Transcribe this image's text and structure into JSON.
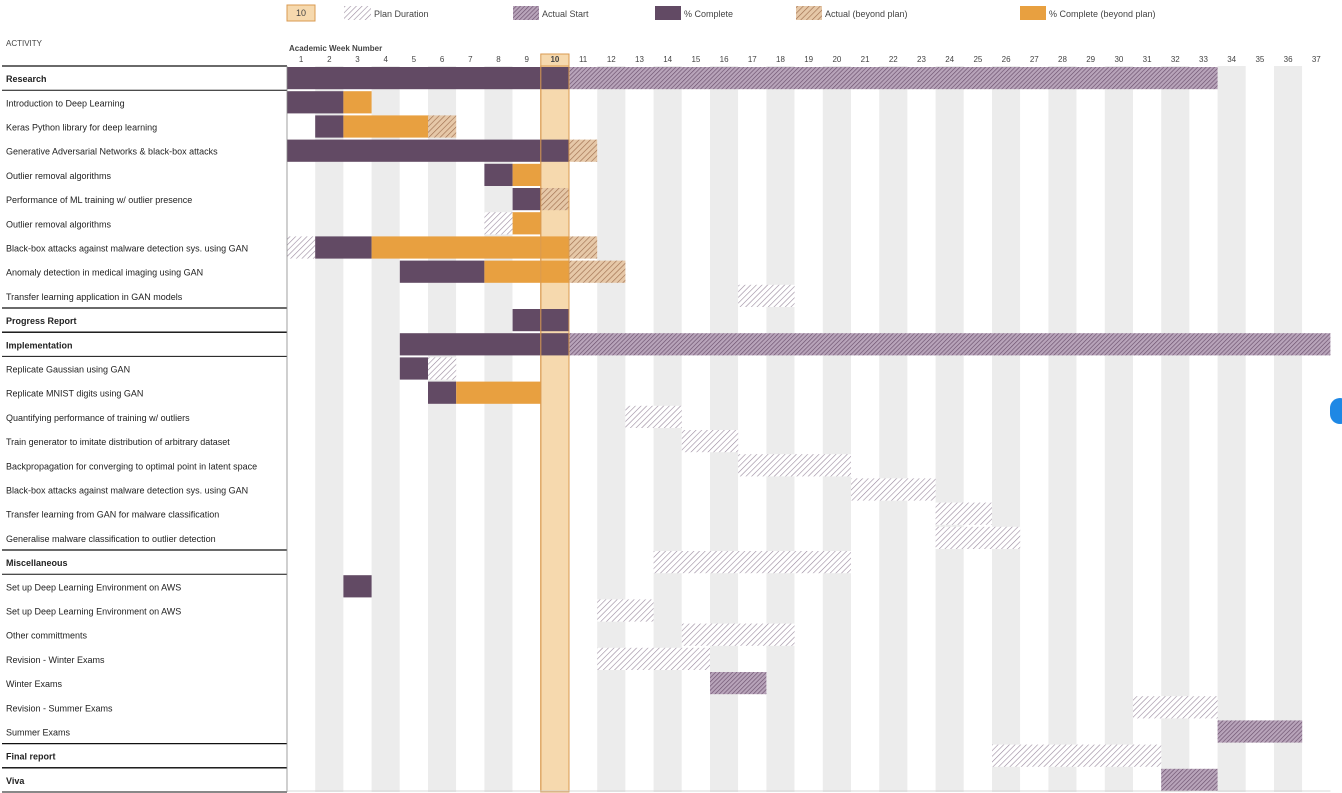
{
  "legend": {
    "current_week": "10",
    "items": [
      {
        "key": "plan",
        "label": "Plan Duration"
      },
      {
        "key": "actual_start",
        "label": "Actual Start"
      },
      {
        "key": "complete",
        "label": "% Complete"
      },
      {
        "key": "actual_beyond",
        "label": "Actual (beyond plan)"
      },
      {
        "key": "complete_beyond",
        "label": "% Complete (beyond plan)"
      }
    ]
  },
  "header": {
    "activity_label": "ACTIVITY",
    "week_axis_label": "Academic Week Number"
  },
  "colors": {
    "complete": "#624a64",
    "complete_beyond": "#e8a040",
    "plan_hatch": "#9a8a9e",
    "actual_hatch": "#7a5a7c",
    "actual_beyond_hatch": "#b08060",
    "current_week_fill": "#f6d9ae",
    "current_week_border": "#d99a50",
    "stripe_grey": "#ececec"
  },
  "chart_data": {
    "type": "gantt",
    "x_axis": "Academic Week Number",
    "weeks": [
      "1",
      "2",
      "3",
      "4",
      "5",
      "6",
      "7",
      "8",
      "9",
      "10",
      "11",
      "12",
      "13",
      "14",
      "15",
      "16",
      "17",
      "18",
      "19",
      "20",
      "21",
      "22",
      "23",
      "24",
      "25",
      "26",
      "27",
      "28",
      "29",
      "30",
      "31",
      "32",
      "33",
      "34",
      "35",
      "36",
      "37"
    ],
    "current_week": 10,
    "rows": [
      {
        "label": "Research",
        "group": true,
        "bars": [
          {
            "t": "complete",
            "s": 1,
            "e": 10
          },
          {
            "t": "actual",
            "s": 11,
            "e": 33
          }
        ]
      },
      {
        "label": "Introduction to Deep Learning",
        "bars": [
          {
            "t": "complete",
            "s": 1,
            "e": 2
          },
          {
            "t": "complete_beyond",
            "s": 3,
            "e": 3
          }
        ]
      },
      {
        "label": "Keras Python library for deep learning",
        "bars": [
          {
            "t": "complete",
            "s": 2,
            "e": 2
          },
          {
            "t": "complete_beyond",
            "s": 3,
            "e": 5
          },
          {
            "t": "actual_beyond",
            "s": 6,
            "e": 6
          }
        ]
      },
      {
        "label": "Generative Adversarial Networks & black-box attacks",
        "bars": [
          {
            "t": "complete",
            "s": 1,
            "e": 10
          },
          {
            "t": "actual_beyond",
            "s": 11,
            "e": 11
          }
        ]
      },
      {
        "label": "Outlier removal algorithms",
        "bars": [
          {
            "t": "complete",
            "s": 8,
            "e": 8
          },
          {
            "t": "complete_beyond",
            "s": 9,
            "e": 9
          }
        ]
      },
      {
        "label": "Performance of ML training w/ outlier presence",
        "bars": [
          {
            "t": "complete",
            "s": 9,
            "e": 9
          },
          {
            "t": "actual_beyond",
            "s": 10,
            "e": 10
          }
        ]
      },
      {
        "label": "Outlier removal algorithms",
        "bars": [
          {
            "t": "plan",
            "s": 8,
            "e": 8
          },
          {
            "t": "complete_beyond",
            "s": 9,
            "e": 9
          }
        ]
      },
      {
        "label": "Black-box attacks against malware detection sys. using GAN",
        "bars": [
          {
            "t": "plan",
            "s": 1,
            "e": 1
          },
          {
            "t": "complete",
            "s": 2,
            "e": 3
          },
          {
            "t": "complete_beyond",
            "s": 4,
            "e": 10
          },
          {
            "t": "actual_beyond",
            "s": 11,
            "e": 11
          }
        ]
      },
      {
        "label": "Anomaly detection in medical imaging using GAN",
        "bars": [
          {
            "t": "complete",
            "s": 5,
            "e": 7
          },
          {
            "t": "complete_beyond",
            "s": 8,
            "e": 10
          },
          {
            "t": "actual_beyond",
            "s": 11,
            "e": 12
          }
        ]
      },
      {
        "label": "Transfer learning application in GAN models",
        "bars": [
          {
            "t": "plan",
            "s": 17,
            "e": 18
          }
        ]
      },
      {
        "label": "Progress Report",
        "group": true,
        "bars": [
          {
            "t": "complete",
            "s": 9,
            "e": 10
          }
        ]
      },
      {
        "label": "Implementation",
        "group": true,
        "bars": [
          {
            "t": "complete",
            "s": 5,
            "e": 10
          },
          {
            "t": "actual",
            "s": 11,
            "e": 37
          }
        ]
      },
      {
        "label": "Replicate Gaussian using GAN",
        "bars": [
          {
            "t": "complete",
            "s": 5,
            "e": 5
          },
          {
            "t": "plan",
            "s": 6,
            "e": 6
          }
        ]
      },
      {
        "label": "Replicate MNIST digits using GAN",
        "bars": [
          {
            "t": "complete",
            "s": 6,
            "e": 6
          },
          {
            "t": "complete_beyond",
            "s": 7,
            "e": 9
          }
        ]
      },
      {
        "label": "Quantifying performance of training w/ outliers",
        "bars": [
          {
            "t": "plan",
            "s": 13,
            "e": 14
          }
        ]
      },
      {
        "label": "Train generator to imitate distribution of arbitrary dataset",
        "bars": [
          {
            "t": "plan",
            "s": 15,
            "e": 16
          }
        ]
      },
      {
        "label": "Backpropagation for converging to optimal point in latent space",
        "bars": [
          {
            "t": "plan",
            "s": 17,
            "e": 20
          }
        ]
      },
      {
        "label": "Black-box attacks against malware detection sys. using GAN",
        "bars": [
          {
            "t": "plan",
            "s": 21,
            "e": 23
          }
        ]
      },
      {
        "label": "Transfer learning from GAN for malware classification",
        "bars": [
          {
            "t": "plan",
            "s": 24,
            "e": 25
          }
        ]
      },
      {
        "label": "Generalise malware classification to outlier detection",
        "bars": [
          {
            "t": "plan",
            "s": 24,
            "e": 26
          }
        ]
      },
      {
        "label": "Miscellaneous",
        "group": true,
        "bars": [
          {
            "t": "plan",
            "s": 14,
            "e": 20
          }
        ]
      },
      {
        "label": "Set up Deep Learning Environment on AWS",
        "bars": [
          {
            "t": "complete",
            "s": 3,
            "e": 3
          }
        ]
      },
      {
        "label": "Set up Deep Learning Environment on AWS",
        "bars": [
          {
            "t": "plan",
            "s": 12,
            "e": 13
          }
        ]
      },
      {
        "label": "Other committments",
        "bars": [
          {
            "t": "plan",
            "s": 15,
            "e": 18
          }
        ]
      },
      {
        "label": "Revision - Winter Exams",
        "bars": [
          {
            "t": "plan",
            "s": 12,
            "e": 15
          }
        ]
      },
      {
        "label": "Winter Exams",
        "bars": [
          {
            "t": "actual",
            "s": 16,
            "e": 17
          }
        ]
      },
      {
        "label": "Revision - Summer Exams",
        "bars": [
          {
            "t": "plan",
            "s": 31,
            "e": 33
          }
        ]
      },
      {
        "label": "Summer Exams",
        "bars": [
          {
            "t": "actual",
            "s": 34,
            "e": 36
          }
        ]
      },
      {
        "label": "Final report",
        "group": true,
        "bars": [
          {
            "t": "plan",
            "s": 26,
            "e": 31
          }
        ]
      },
      {
        "label": "Viva",
        "group": true,
        "bars": [
          {
            "t": "actual",
            "s": 32,
            "e": 33
          }
        ]
      }
    ]
  }
}
